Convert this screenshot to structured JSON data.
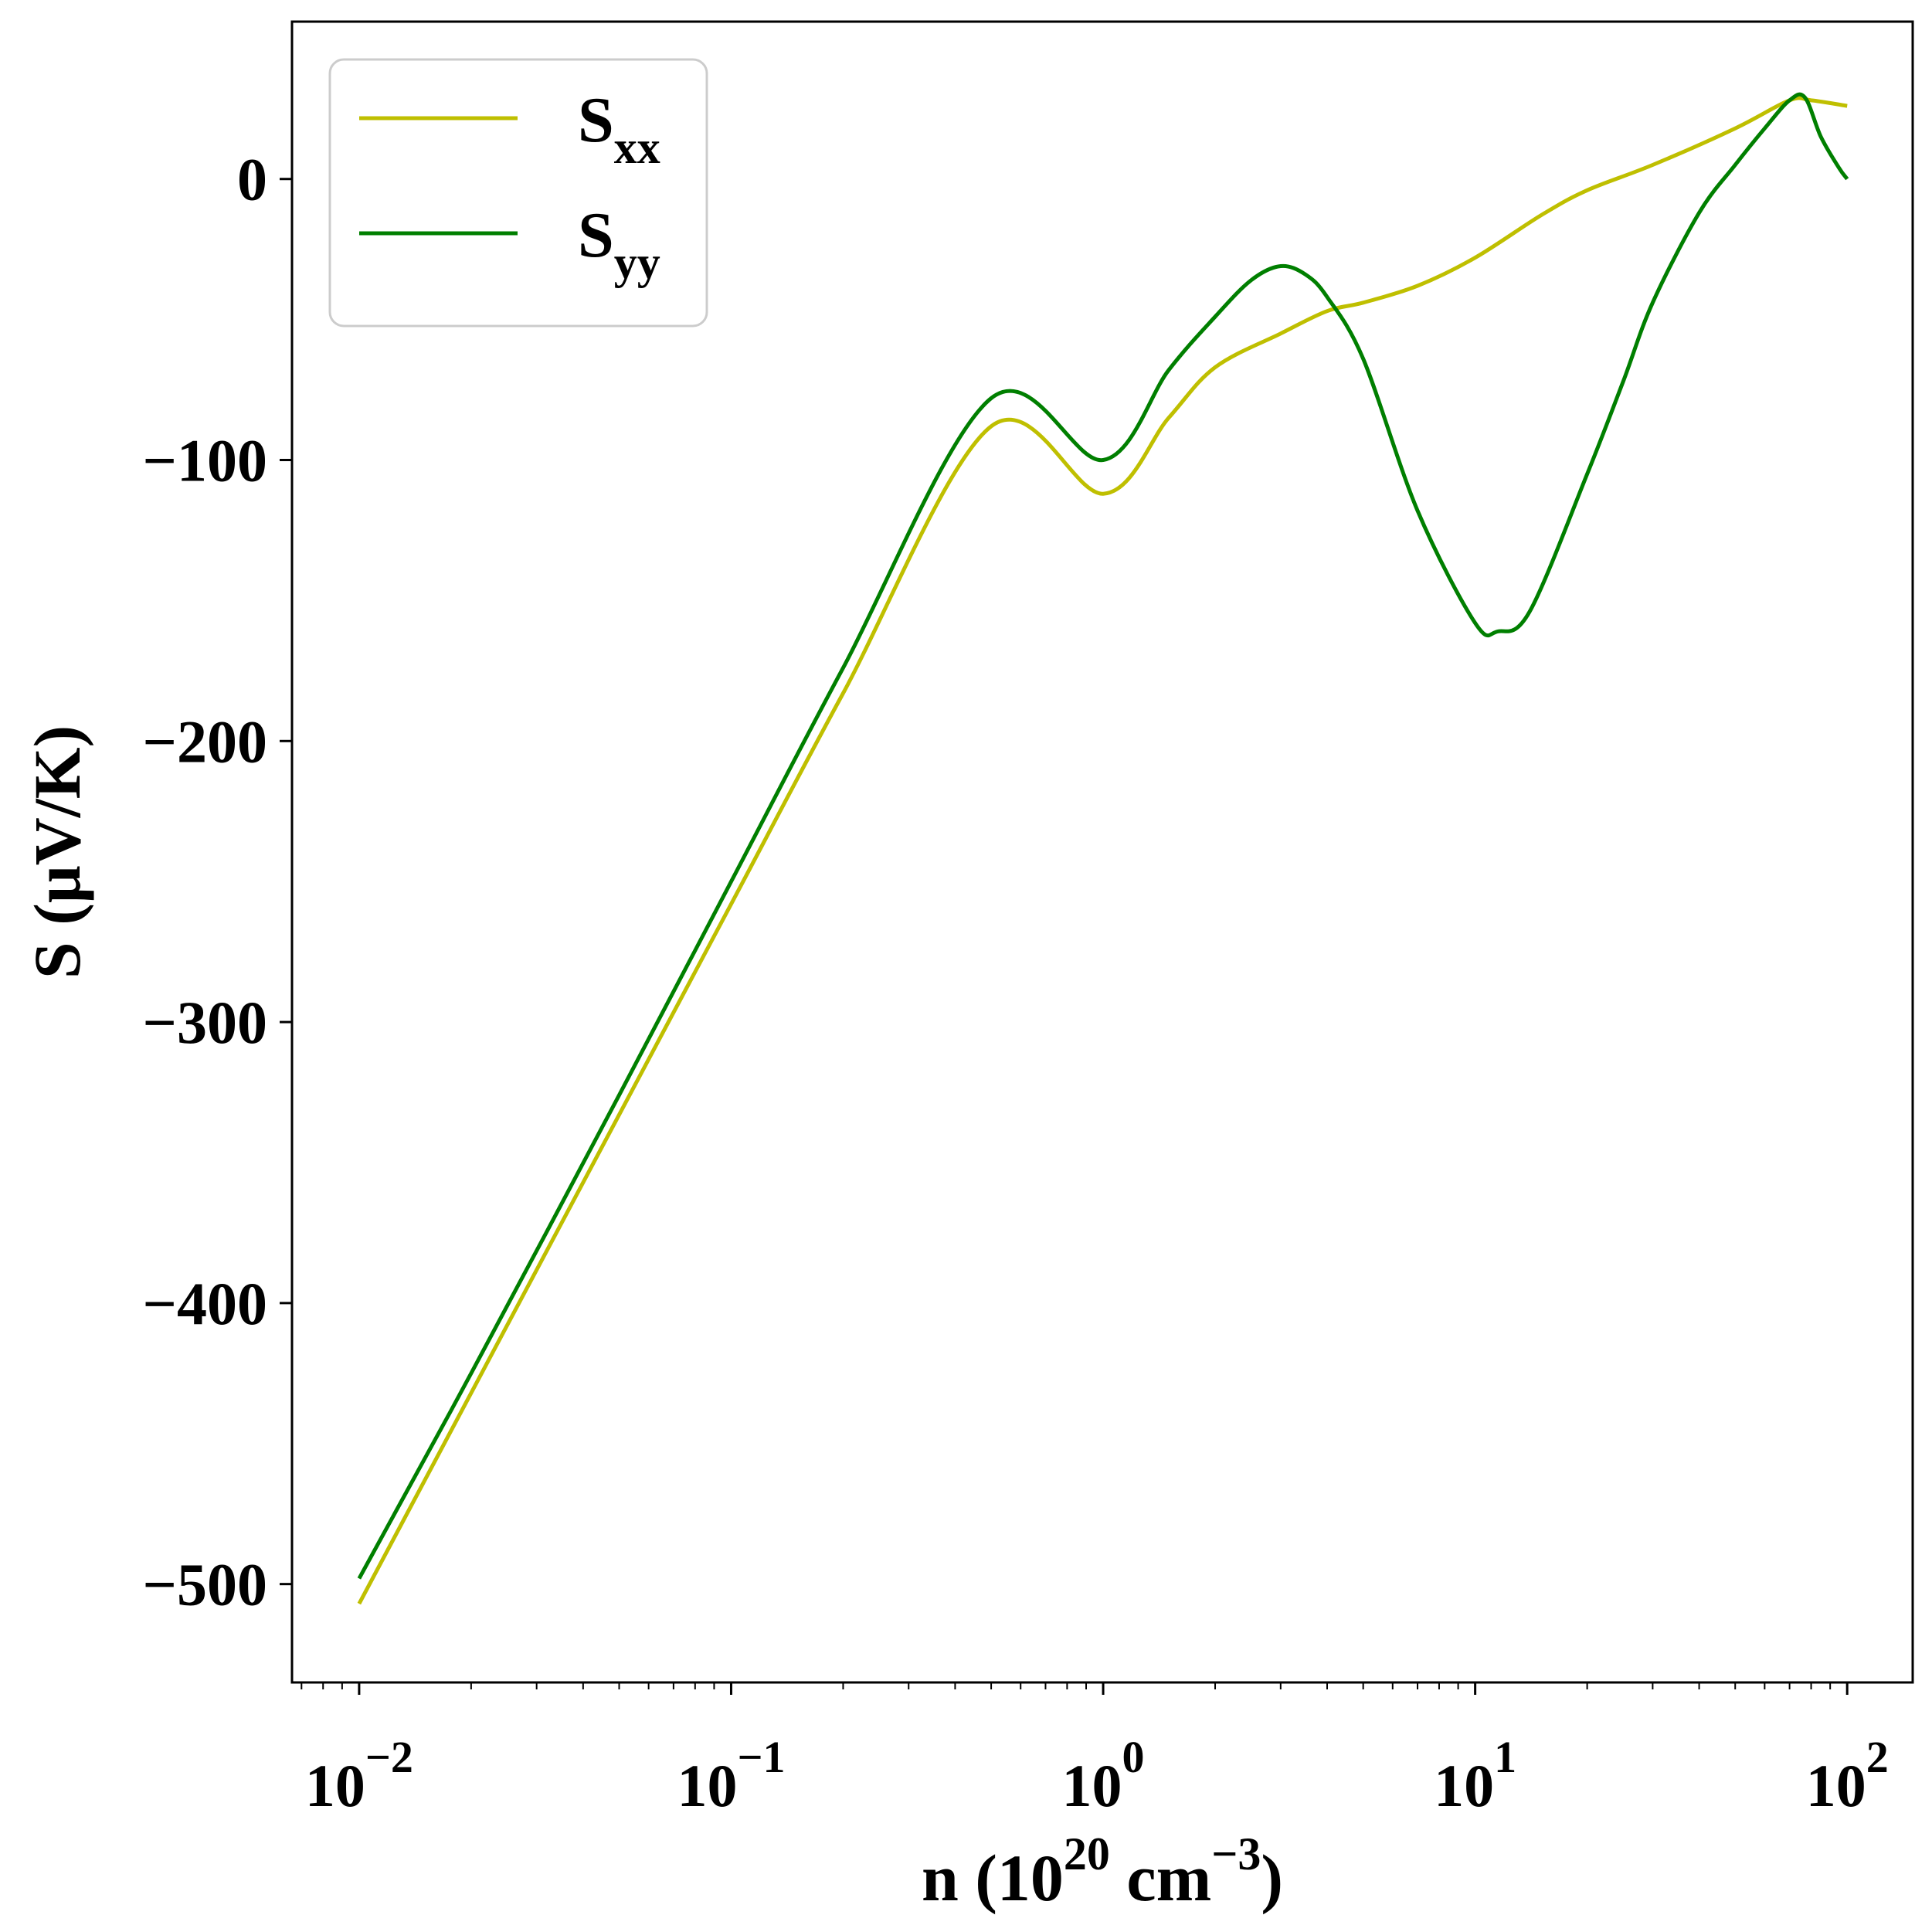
{
  "colors": {
    "sxx": "#bfbf00",
    "syy": "#007f00",
    "axes": "#000000",
    "legend_border": "#cccccc"
  },
  "chart_data": {
    "type": "line",
    "xlabel": {
      "main": "n (10",
      "exp1": "20",
      "mid": " cm",
      "exp2": "−3",
      "end": ")"
    },
    "ylabel": "S (μV/K)",
    "xscale": "log",
    "xlim": [
      0.0066,
      150
    ],
    "ylim": [
      -535,
      56
    ],
    "grid": false,
    "legend": {
      "placement": "top-left"
    },
    "x_ticks": [
      {
        "value": 0.01,
        "base": "10",
        "exp": "−2"
      },
      {
        "value": 0.1,
        "base": "10",
        "exp": "−1"
      },
      {
        "value": 1,
        "base": "10",
        "exp": "0"
      },
      {
        "value": 10,
        "base": "10",
        "exp": "1"
      },
      {
        "value": 100,
        "base": "10",
        "exp": "2"
      }
    ],
    "y_ticks": [
      {
        "value": 0,
        "label": "0"
      },
      {
        "value": -100,
        "label": "−100"
      },
      {
        "value": -200,
        "label": "−200"
      },
      {
        "value": -300,
        "label": "−300"
      },
      {
        "value": -400,
        "label": "−400"
      },
      {
        "value": -500,
        "label": "−500"
      }
    ],
    "series": [
      {
        "name": "S",
        "subscript": "xx",
        "color": "#bfbf00",
        "points": [
          [
            0.01,
            -507
          ],
          [
            0.02,
            -432
          ],
          [
            0.05,
            -333
          ],
          [
            0.1,
            -258
          ],
          [
            0.2,
            -183
          ],
          [
            0.5,
            -88
          ],
          [
            1.0,
            -112
          ],
          [
            1.5,
            -85
          ],
          [
            2.0,
            -67
          ],
          [
            3.0,
            -55
          ],
          [
            4.0,
            -47
          ],
          [
            5.0,
            -44
          ],
          [
            7.0,
            -38
          ],
          [
            10.0,
            -28
          ],
          [
            15.0,
            -13
          ],
          [
            20.0,
            -4
          ],
          [
            30.0,
            5
          ],
          [
            50.0,
            18
          ],
          [
            70.0,
            28
          ],
          [
            80.0,
            28
          ],
          [
            100.0,
            26
          ]
        ]
      },
      {
        "name": "S",
        "subscript": "yy",
        "color": "#007f00",
        "points": [
          [
            0.01,
            -498
          ],
          [
            0.02,
            -425
          ],
          [
            0.05,
            -326
          ],
          [
            0.1,
            -250
          ],
          [
            0.2,
            -174
          ],
          [
            0.5,
            -78
          ],
          [
            1.0,
            -100
          ],
          [
            1.5,
            -68
          ],
          [
            2.0,
            -49
          ],
          [
            2.5,
            -36
          ],
          [
            3.0,
            -31
          ],
          [
            3.5,
            -34
          ],
          [
            4.0,
            -42
          ],
          [
            5.0,
            -64
          ],
          [
            7.0,
            -118
          ],
          [
            10.0,
            -158
          ],
          [
            11.5,
            -161
          ],
          [
            14.0,
            -154
          ],
          [
            20.0,
            -105
          ],
          [
            25.0,
            -72
          ],
          [
            30.0,
            -44
          ],
          [
            40.0,
            -12
          ],
          [
            50.0,
            5
          ],
          [
            60.0,
            18
          ],
          [
            70.0,
            28
          ],
          [
            77.0,
            29
          ],
          [
            85.0,
            15
          ],
          [
            95.0,
            4
          ],
          [
            100.0,
            0
          ]
        ]
      }
    ]
  }
}
